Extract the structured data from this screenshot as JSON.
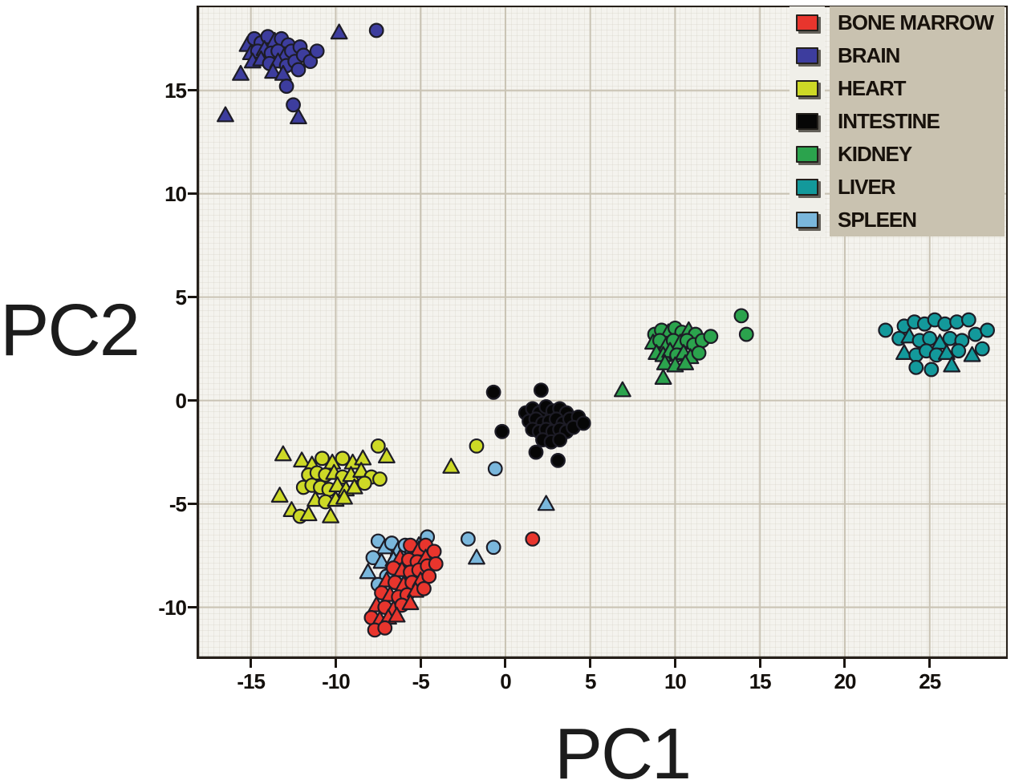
{
  "figure": {
    "x_axis_label": "PC1",
    "y_axis_label": "PC2"
  },
  "colors": {
    "plot_bg": "#f4f3ee",
    "grid": "#c9c3b4",
    "frame": "#26201a",
    "tick_color": "#1b1611",
    "legend_panel_bg": "#c9c2b0",
    "legend_swatch_strip_bg": "#f0efe9",
    "marker_outline": "#1d1c26"
  },
  "chart_data": {
    "type": "scatter",
    "title": "",
    "xlabel": "PC1",
    "ylabel": "PC2",
    "xlim": [
      -18.2,
      29.6
    ],
    "ylim": [
      -12.5,
      19.1
    ],
    "x_ticks": [
      -15,
      -10,
      -5,
      0,
      5,
      10,
      15,
      20,
      25
    ],
    "y_ticks": [
      -10,
      -5,
      0,
      5,
      10,
      15
    ],
    "grid": true,
    "legend_position": "top-right",
    "marker_shapes": {
      "c": "circle",
      "t": "triangle-up"
    },
    "draw_order": [
      "SPLEEN",
      "BONE MARROW",
      "HEART",
      "INTESTINE",
      "BRAIN",
      "KIDNEY",
      "LIVER"
    ],
    "series": [
      {
        "name": "BONE MARROW",
        "color": "#e8352d",
        "points": [
          [
            1.6,
            -6.7,
            "c"
          ],
          [
            -5.6,
            -7.0,
            "c"
          ],
          [
            -5.1,
            -7.2,
            "t"
          ],
          [
            -4.7,
            -7.0,
            "c"
          ],
          [
            -6.2,
            -7.6,
            "t"
          ],
          [
            -5.7,
            -7.7,
            "c"
          ],
          [
            -5.2,
            -7.8,
            "c"
          ],
          [
            -4.7,
            -7.6,
            "t"
          ],
          [
            -4.2,
            -7.3,
            "c"
          ],
          [
            -6.6,
            -8.1,
            "c"
          ],
          [
            -6.1,
            -8.2,
            "t"
          ],
          [
            -5.6,
            -8.3,
            "c"
          ],
          [
            -5.1,
            -8.2,
            "c"
          ],
          [
            -4.6,
            -8.0,
            "c"
          ],
          [
            -4.1,
            -7.9,
            "c"
          ],
          [
            -7.0,
            -8.7,
            "t"
          ],
          [
            -6.5,
            -8.8,
            "c"
          ],
          [
            -6.0,
            -8.9,
            "t"
          ],
          [
            -5.5,
            -8.8,
            "c"
          ],
          [
            -5.0,
            -8.7,
            "t"
          ],
          [
            -4.5,
            -8.5,
            "c"
          ],
          [
            -7.3,
            -9.3,
            "c"
          ],
          [
            -6.8,
            -9.4,
            "t"
          ],
          [
            -6.3,
            -9.5,
            "c"
          ],
          [
            -5.8,
            -9.4,
            "c"
          ],
          [
            -5.3,
            -9.2,
            "t"
          ],
          [
            -4.8,
            -9.1,
            "c"
          ],
          [
            -7.6,
            -9.9,
            "t"
          ],
          [
            -7.1,
            -10.0,
            "c"
          ],
          [
            -6.6,
            -10.1,
            "t"
          ],
          [
            -6.1,
            -9.9,
            "c"
          ],
          [
            -5.6,
            -9.8,
            "t"
          ],
          [
            -7.9,
            -10.5,
            "c"
          ],
          [
            -7.4,
            -10.6,
            "t"
          ],
          [
            -6.9,
            -10.5,
            "t"
          ],
          [
            -6.4,
            -10.4,
            "t"
          ],
          [
            -7.7,
            -11.1,
            "c"
          ],
          [
            -7.1,
            -11.0,
            "c"
          ]
        ]
      },
      {
        "name": "BRAIN",
        "color": "#3d3d9e",
        "points": [
          [
            -15.2,
            17.2,
            "t"
          ],
          [
            -14.8,
            17.5,
            "c"
          ],
          [
            -14.4,
            17.3,
            "c"
          ],
          [
            -14.0,
            17.6,
            "c"
          ],
          [
            -13.6,
            17.4,
            "t"
          ],
          [
            -13.2,
            17.5,
            "c"
          ],
          [
            -12.8,
            17.2,
            "c"
          ],
          [
            -15.0,
            16.8,
            "t"
          ],
          [
            -14.6,
            16.9,
            "c"
          ],
          [
            -14.2,
            17.0,
            "t"
          ],
          [
            -13.8,
            16.8,
            "c"
          ],
          [
            -13.4,
            16.9,
            "c"
          ],
          [
            -13.0,
            16.7,
            "t"
          ],
          [
            -12.6,
            16.9,
            "c"
          ],
          [
            -12.1,
            17.1,
            "c"
          ],
          [
            -14.9,
            16.4,
            "t"
          ],
          [
            -14.4,
            16.5,
            "t"
          ],
          [
            -13.9,
            16.3,
            "c"
          ],
          [
            -13.4,
            16.4,
            "t"
          ],
          [
            -12.9,
            16.2,
            "c"
          ],
          [
            -12.4,
            16.4,
            "c"
          ],
          [
            -11.9,
            16.7,
            "c"
          ],
          [
            -13.7,
            15.9,
            "t"
          ],
          [
            -13.1,
            15.8,
            "t"
          ],
          [
            -12.2,
            16.0,
            "c"
          ],
          [
            -11.5,
            16.4,
            "c"
          ],
          [
            -11.1,
            16.9,
            "c"
          ],
          [
            -9.8,
            17.8,
            "t"
          ],
          [
            -7.6,
            17.9,
            "c"
          ],
          [
            -15.6,
            15.8,
            "t"
          ],
          [
            -12.9,
            15.2,
            "c"
          ],
          [
            -12.5,
            14.3,
            "c"
          ],
          [
            -12.2,
            13.7,
            "t"
          ],
          [
            -16.5,
            13.8,
            "t"
          ]
        ]
      },
      {
        "name": "HEART",
        "color": "#cdd926",
        "points": [
          [
            -13.1,
            -2.6,
            "t"
          ],
          [
            -12.0,
            -2.9,
            "t"
          ],
          [
            -11.4,
            -3.1,
            "t"
          ],
          [
            -10.8,
            -2.8,
            "c"
          ],
          [
            -10.2,
            -3.0,
            "t"
          ],
          [
            -9.6,
            -2.8,
            "c"
          ],
          [
            -9.0,
            -3.0,
            "t"
          ],
          [
            -8.4,
            -2.8,
            "t"
          ],
          [
            -7.5,
            -2.2,
            "c"
          ],
          [
            -7.0,
            -2.7,
            "t"
          ],
          [
            -11.6,
            -3.6,
            "c"
          ],
          [
            -11.1,
            -3.5,
            "c"
          ],
          [
            -10.6,
            -3.6,
            "c"
          ],
          [
            -10.1,
            -3.5,
            "t"
          ],
          [
            -9.6,
            -3.7,
            "c"
          ],
          [
            -9.1,
            -3.6,
            "t"
          ],
          [
            -8.5,
            -3.4,
            "t"
          ],
          [
            -7.9,
            -3.7,
            "c"
          ],
          [
            -7.4,
            -3.8,
            "c"
          ],
          [
            -11.9,
            -4.2,
            "c"
          ],
          [
            -11.4,
            -4.1,
            "c"
          ],
          [
            -10.9,
            -4.2,
            "c"
          ],
          [
            -10.4,
            -4.3,
            "c"
          ],
          [
            -9.9,
            -4.1,
            "t"
          ],
          [
            -9.4,
            -4.3,
            "t"
          ],
          [
            -8.9,
            -4.2,
            "t"
          ],
          [
            -8.3,
            -4.0,
            "c"
          ],
          [
            -13.3,
            -4.6,
            "t"
          ],
          [
            -11.2,
            -4.8,
            "t"
          ],
          [
            -10.6,
            -4.9,
            "c"
          ],
          [
            -10.0,
            -4.8,
            "t"
          ],
          [
            -9.5,
            -4.7,
            "t"
          ],
          [
            -12.6,
            -5.3,
            "t"
          ],
          [
            -12.1,
            -5.6,
            "c"
          ],
          [
            -11.6,
            -5.5,
            "t"
          ],
          [
            -10.3,
            -5.6,
            "t"
          ],
          [
            -1.7,
            -2.2,
            "c"
          ],
          [
            -3.2,
            -3.2,
            "t"
          ]
        ]
      },
      {
        "name": "INTESTINE",
        "color": "#060606",
        "points": [
          [
            -0.7,
            0.4,
            "c"
          ],
          [
            2.1,
            0.5,
            "c"
          ],
          [
            1.2,
            -0.6,
            "c"
          ],
          [
            1.6,
            -0.4,
            "c"
          ],
          [
            2.0,
            -0.6,
            "c"
          ],
          [
            2.4,
            -0.3,
            "c"
          ],
          [
            2.8,
            -0.5,
            "c"
          ],
          [
            3.2,
            -0.4,
            "c"
          ],
          [
            3.6,
            -0.6,
            "c"
          ],
          [
            -0.2,
            -1.5,
            "c"
          ],
          [
            1.4,
            -1.0,
            "c"
          ],
          [
            1.8,
            -0.9,
            "c"
          ],
          [
            2.2,
            -1.1,
            "c"
          ],
          [
            2.6,
            -1.0,
            "c"
          ],
          [
            3.0,
            -0.9,
            "c"
          ],
          [
            3.4,
            -1.1,
            "c"
          ],
          [
            3.8,
            -0.9,
            "c"
          ],
          [
            4.3,
            -0.8,
            "c"
          ],
          [
            1.6,
            -1.4,
            "c"
          ],
          [
            2.0,
            -1.5,
            "c"
          ],
          [
            2.4,
            -1.4,
            "c"
          ],
          [
            2.8,
            -1.5,
            "c"
          ],
          [
            3.2,
            -1.4,
            "c"
          ],
          [
            3.6,
            -1.5,
            "c"
          ],
          [
            4.0,
            -1.3,
            "c"
          ],
          [
            4.6,
            -1.1,
            "c"
          ],
          [
            2.2,
            -1.9,
            "c"
          ],
          [
            2.7,
            -2.0,
            "c"
          ],
          [
            3.2,
            -1.9,
            "c"
          ],
          [
            1.8,
            -2.5,
            "c"
          ],
          [
            3.1,
            -2.9,
            "c"
          ]
        ]
      },
      {
        "name": "KIDNEY",
        "color": "#2ba34d",
        "points": [
          [
            8.8,
            3.2,
            "c"
          ],
          [
            9.2,
            3.4,
            "c"
          ],
          [
            9.6,
            3.3,
            "t"
          ],
          [
            10.0,
            3.5,
            "c"
          ],
          [
            10.4,
            3.3,
            "c"
          ],
          [
            10.8,
            3.4,
            "t"
          ],
          [
            11.2,
            3.2,
            "c"
          ],
          [
            8.7,
            2.8,
            "t"
          ],
          [
            9.1,
            2.9,
            "c"
          ],
          [
            9.5,
            2.7,
            "t"
          ],
          [
            9.9,
            2.9,
            "c"
          ],
          [
            10.3,
            2.8,
            "t"
          ],
          [
            10.7,
            2.9,
            "c"
          ],
          [
            11.1,
            2.7,
            "c"
          ],
          [
            11.6,
            2.9,
            "c"
          ],
          [
            12.1,
            3.1,
            "c"
          ],
          [
            8.9,
            2.3,
            "t"
          ],
          [
            9.3,
            2.2,
            "t"
          ],
          [
            9.7,
            2.4,
            "t"
          ],
          [
            10.1,
            2.2,
            "c"
          ],
          [
            10.5,
            2.3,
            "t"
          ],
          [
            10.9,
            2.1,
            "t"
          ],
          [
            11.4,
            2.3,
            "c"
          ],
          [
            9.4,
            1.8,
            "t"
          ],
          [
            10.0,
            1.7,
            "t"
          ],
          [
            10.6,
            1.8,
            "t"
          ],
          [
            13.9,
            4.1,
            "c"
          ],
          [
            14.2,
            3.2,
            "c"
          ],
          [
            6.9,
            0.5,
            "t"
          ],
          [
            9.3,
            1.1,
            "t"
          ]
        ]
      },
      {
        "name": "LIVER",
        "color": "#13999b",
        "points": [
          [
            22.4,
            3.4,
            "c"
          ],
          [
            23.5,
            3.6,
            "c"
          ],
          [
            24.1,
            3.8,
            "c"
          ],
          [
            24.7,
            3.7,
            "c"
          ],
          [
            25.3,
            3.9,
            "c"
          ],
          [
            25.9,
            3.7,
            "c"
          ],
          [
            26.6,
            3.8,
            "c"
          ],
          [
            27.3,
            3.9,
            "c"
          ],
          [
            23.2,
            3.0,
            "c"
          ],
          [
            23.8,
            3.1,
            "t"
          ],
          [
            24.4,
            2.9,
            "c"
          ],
          [
            25.0,
            3.0,
            "c"
          ],
          [
            25.6,
            2.8,
            "t"
          ],
          [
            26.2,
            3.0,
            "c"
          ],
          [
            26.9,
            2.9,
            "c"
          ],
          [
            27.7,
            3.2,
            "c"
          ],
          [
            28.4,
            3.4,
            "c"
          ],
          [
            23.5,
            2.3,
            "t"
          ],
          [
            24.2,
            2.2,
            "c"
          ],
          [
            24.8,
            2.4,
            "c"
          ],
          [
            25.4,
            2.2,
            "c"
          ],
          [
            26.0,
            2.3,
            "t"
          ],
          [
            26.7,
            2.4,
            "c"
          ],
          [
            27.5,
            2.2,
            "t"
          ],
          [
            28.1,
            2.5,
            "c"
          ],
          [
            24.2,
            1.6,
            "c"
          ],
          [
            25.1,
            1.5,
            "c"
          ],
          [
            26.3,
            1.7,
            "t"
          ]
        ]
      },
      {
        "name": "SPLEEN",
        "color": "#7ab7dc",
        "points": [
          [
            -7.5,
            -6.8,
            "c"
          ],
          [
            -7.1,
            -7.1,
            "t"
          ],
          [
            -6.7,
            -6.9,
            "c"
          ],
          [
            -6.3,
            -7.2,
            "t"
          ],
          [
            -5.9,
            -7.0,
            "c"
          ],
          [
            -5.5,
            -7.3,
            "c"
          ],
          [
            -5.1,
            -7.0,
            "t"
          ],
          [
            -4.6,
            -6.6,
            "c"
          ],
          [
            -7.8,
            -7.6,
            "c"
          ],
          [
            -7.3,
            -7.8,
            "t"
          ],
          [
            -6.6,
            -7.7,
            "t"
          ],
          [
            -6.1,
            -7.9,
            "c"
          ],
          [
            -5.6,
            -7.7,
            "c"
          ],
          [
            -8.1,
            -8.3,
            "t"
          ],
          [
            -7.0,
            -8.5,
            "c"
          ],
          [
            -6.3,
            -8.4,
            "t"
          ],
          [
            -7.5,
            -8.9,
            "c"
          ],
          [
            -2.2,
            -6.7,
            "c"
          ],
          [
            -0.7,
            -7.1,
            "c"
          ],
          [
            -1.7,
            -7.6,
            "t"
          ],
          [
            -0.6,
            -3.3,
            "c"
          ],
          [
            2.4,
            -5.0,
            "t"
          ]
        ]
      }
    ]
  }
}
